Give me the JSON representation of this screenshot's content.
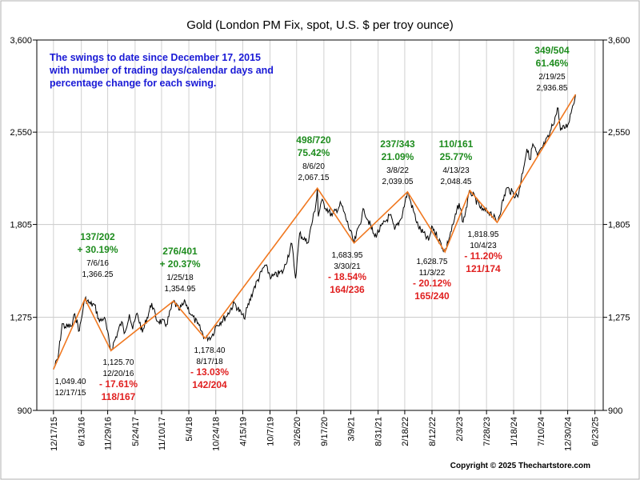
{
  "chart_data": {
    "type": "line",
    "title": "Gold (London PM Fix, spot, U.S. $ per troy ounce)",
    "xlabel": "",
    "ylabel": "",
    "y_scale": "log",
    "ylim": [
      900,
      3600
    ],
    "y_ticks": [
      {
        "value": 900,
        "label": "900"
      },
      {
        "value": 1275,
        "label": "1,275"
      },
      {
        "value": 1805,
        "label": "1,805"
      },
      {
        "value": 2550,
        "label": "2,550"
      },
      {
        "value": 3600,
        "label": "3,600"
      }
    ],
    "x_range": [
      "2015-09-01",
      "2025-08-15"
    ],
    "x_ticks": [
      {
        "date": "2015-12-17",
        "label": "12/17/15"
      },
      {
        "date": "2016-06-13",
        "label": "6/13/16"
      },
      {
        "date": "2016-11-29",
        "label": "11/29/16"
      },
      {
        "date": "2017-05-24",
        "label": "5/24/17"
      },
      {
        "date": "2017-11-10",
        "label": "11/10/17"
      },
      {
        "date": "2018-05-04",
        "label": "5/4/18"
      },
      {
        "date": "2018-10-24",
        "label": "10/24/18"
      },
      {
        "date": "2019-04-15",
        "label": "4/15/19"
      },
      {
        "date": "2019-10-07",
        "label": "10/7/19"
      },
      {
        "date": "2020-03-26",
        "label": "3/26/20"
      },
      {
        "date": "2020-09-17",
        "label": "9/17/20"
      },
      {
        "date": "2021-03-09",
        "label": "3/9/21"
      },
      {
        "date": "2021-08-31",
        "label": "8/31/21"
      },
      {
        "date": "2022-02-18",
        "label": "2/18/22"
      },
      {
        "date": "2022-08-12",
        "label": "8/12/22"
      },
      {
        "date": "2023-02-03",
        "label": "2/3/23"
      },
      {
        "date": "2023-07-28",
        "label": "7/28/23"
      },
      {
        "date": "2024-01-18",
        "label": "1/18/24"
      },
      {
        "date": "2024-07-10",
        "label": "7/10/24"
      },
      {
        "date": "2024-12-30",
        "label": "12/30/24"
      },
      {
        "date": "2025-06-23",
        "label": "6/23/25"
      }
    ],
    "grid": true,
    "note": [
      "The swings to date since December 17, 2015",
      "with number of trading days/calendar days and",
      "percentage change for each swing."
    ],
    "series": [
      {
        "points": [
          [
            "2015-12-17",
            1049.4
          ],
          [
            "2016-01-15",
            1095
          ],
          [
            "2016-02-11",
            1245
          ],
          [
            "2016-03-01",
            1230
          ],
          [
            "2016-04-15",
            1235
          ],
          [
            "2016-05-02",
            1292
          ],
          [
            "2016-05-31",
            1212
          ],
          [
            "2016-06-24",
            1315
          ],
          [
            "2016-07-06",
            1366.25
          ],
          [
            "2016-08-10",
            1340
          ],
          [
            "2016-09-06",
            1335
          ],
          [
            "2016-10-07",
            1255
          ],
          [
            "2016-11-08",
            1275
          ],
          [
            "2016-12-20",
            1125.7
          ],
          [
            "2017-02-27",
            1255
          ],
          [
            "2017-03-15",
            1200
          ],
          [
            "2017-04-17",
            1290
          ],
          [
            "2017-05-09",
            1220
          ],
          [
            "2017-06-06",
            1295
          ],
          [
            "2017-07-10",
            1205
          ],
          [
            "2017-09-08",
            1345
          ],
          [
            "2017-10-06",
            1265
          ],
          [
            "2017-12-12",
            1242
          ],
          [
            "2018-01-25",
            1354.95
          ],
          [
            "2018-03-01",
            1310
          ],
          [
            "2018-04-11",
            1350
          ],
          [
            "2018-05-21",
            1285
          ],
          [
            "2018-06-28",
            1245
          ],
          [
            "2018-08-17",
            1178.4
          ],
          [
            "2018-09-28",
            1187
          ],
          [
            "2018-10-26",
            1235
          ],
          [
            "2018-12-31",
            1280
          ],
          [
            "2019-02-20",
            1345
          ],
          [
            "2019-04-23",
            1270
          ],
          [
            "2019-06-25",
            1420
          ],
          [
            "2019-09-04",
            1550
          ],
          [
            "2019-10-15",
            1480
          ],
          [
            "2019-12-31",
            1515
          ],
          [
            "2020-02-24",
            1680
          ],
          [
            "2020-03-19",
            1475
          ],
          [
            "2020-04-14",
            1745
          ],
          [
            "2020-06-05",
            1685
          ],
          [
            "2020-07-27",
            1940
          ],
          [
            "2020-08-06",
            2067.15
          ],
          [
            "2020-08-12",
            1860
          ],
          [
            "2020-09-01",
            1970
          ],
          [
            "2020-11-09",
            1865
          ],
          [
            "2021-01-05",
            1950
          ],
          [
            "2021-03-30",
            1683.95
          ],
          [
            "2021-06-01",
            1910
          ],
          [
            "2021-08-09",
            1725
          ],
          [
            "2021-11-16",
            1870
          ],
          [
            "2021-12-15",
            1770
          ],
          [
            "2022-01-25",
            1845
          ],
          [
            "2022-03-08",
            2039.05
          ],
          [
            "2022-05-16",
            1790
          ],
          [
            "2022-07-21",
            1700
          ],
          [
            "2022-08-15",
            1790
          ],
          [
            "2022-11-03",
            1628.75
          ],
          [
            "2022-12-30",
            1820
          ],
          [
            "2023-02-02",
            1955
          ],
          [
            "2023-02-28",
            1820
          ],
          [
            "2023-04-13",
            2048.45
          ],
          [
            "2023-06-29",
            1905
          ],
          [
            "2023-08-21",
            1890
          ],
          [
            "2023-10-04",
            1818.95
          ],
          [
            "2023-12-04",
            2070
          ],
          [
            "2024-02-14",
            2000
          ],
          [
            "2024-04-12",
            2395
          ],
          [
            "2024-05-02",
            2300
          ],
          [
            "2024-05-20",
            2440
          ],
          [
            "2024-06-20",
            2330
          ],
          [
            "2024-08-30",
            2505
          ],
          [
            "2024-10-30",
            2790
          ],
          [
            "2024-11-14",
            2565
          ],
          [
            "2024-12-31",
            2620
          ],
          [
            "2025-01-31",
            2815
          ],
          [
            "2025-02-19",
            2936.85
          ]
        ]
      }
    ],
    "swings": [
      [
        "2015-12-17",
        1049.4
      ],
      [
        "2016-07-06",
        1366.25
      ],
      [
        "2016-12-20",
        1125.7
      ],
      [
        "2018-01-25",
        1354.95
      ],
      [
        "2018-08-17",
        1178.4
      ],
      [
        "2020-08-06",
        2067.15
      ],
      [
        "2021-03-30",
        1683.95
      ],
      [
        "2022-03-08",
        2039.05
      ],
      [
        "2022-11-03",
        1628.75
      ],
      [
        "2023-04-13",
        2048.45
      ],
      [
        "2023-10-04",
        1818.95
      ],
      [
        "2025-02-19",
        2936.85
      ]
    ],
    "annotations": [
      {
        "lines": [
          "1,049.40",
          "12/17/15"
        ],
        "color": "#000000"
      },
      {
        "lines": [
          "137/202",
          "+ 30.19%",
          "7/6/16",
          "1,366.25"
        ],
        "color": "#1e8c1e"
      },
      {
        "lines": [
          "1,125.70",
          "12/20/16",
          "- 17.61%",
          "118/167"
        ],
        "color": "#e02020"
      },
      {
        "lines": [
          "276/401",
          "+ 20.37%",
          "1/25/18",
          "1,354.95"
        ],
        "color": "#1e8c1e"
      },
      {
        "lines": [
          "1,178.40",
          "8/17/18",
          "- 13.03%",
          "142/204"
        ],
        "color": "#e02020"
      },
      {
        "lines": [
          "498/720",
          "75.42%",
          "8/6/20",
          "2,067.15"
        ],
        "color": "#1e8c1e"
      },
      {
        "lines": [
          "1,683.95",
          "3/30/21",
          "- 18.54%",
          "164/236"
        ],
        "color": "#e02020"
      },
      {
        "lines": [
          "237/343",
          "21.09%",
          "3/8/22",
          "2,039.05"
        ],
        "color": "#1e8c1e"
      },
      {
        "lines": [
          "1,628.75",
          "11/3/22",
          "- 20.12%",
          "165/240"
        ],
        "color": "#e02020"
      },
      {
        "lines": [
          "110/161",
          "25.77%",
          "4/13/23",
          "2,048.45"
        ],
        "color": "#1e8c1e"
      },
      {
        "lines": [
          "1,818.95",
          "10/4/23",
          "- 11.20%",
          "121/174"
        ],
        "color": "#e02020"
      },
      {
        "lines": [
          "349/504",
          "61.46%",
          "2/19/25",
          "2,936.85"
        ],
        "color": "#1e8c1e"
      }
    ],
    "colors": {
      "price_line": "#000000",
      "swing_line": "#f07820",
      "up": "#1e8c1e",
      "down": "#e02020",
      "note": "#1a1ad6"
    }
  },
  "copyright": "Copyright © 2025 Thechartstore.com"
}
